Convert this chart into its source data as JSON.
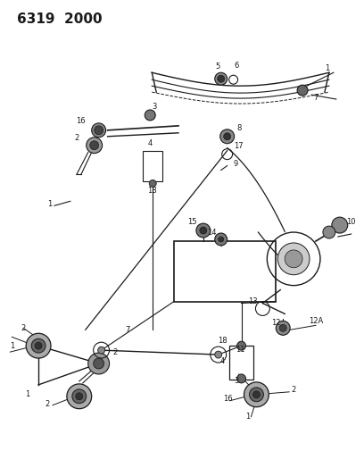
{
  "title": "6319 2000",
  "bg_color": "#ffffff",
  "fg_color": "#1a1a1a",
  "fig_width": 4.08,
  "fig_height": 5.33,
  "dpi": 100,
  "label_fontsize": 6.0
}
